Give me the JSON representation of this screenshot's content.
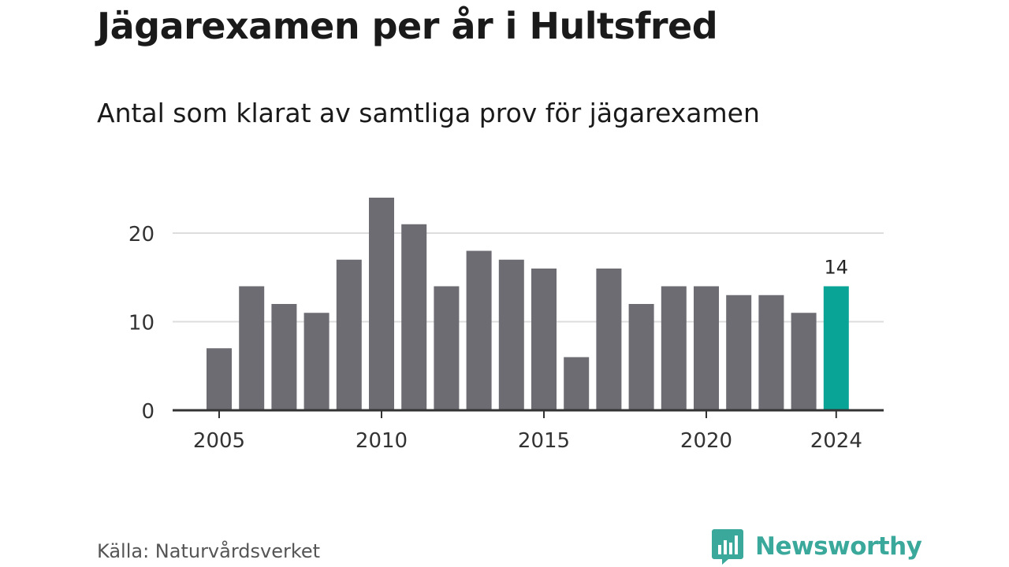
{
  "chart_data": {
    "type": "bar",
    "title": "Jägarexamen per år i Hultsfred",
    "subtitle": "Antal som klarat av samtliga prov för jägarexamen",
    "source": "Källa: Naturvårdsverket",
    "brand": "Newsworthy",
    "x": [
      2005,
      2006,
      2007,
      2008,
      2009,
      2010,
      2011,
      2012,
      2013,
      2014,
      2015,
      2016,
      2017,
      2018,
      2019,
      2020,
      2021,
      2022,
      2023,
      2024
    ],
    "values": [
      7,
      14,
      12,
      11,
      17,
      24,
      21,
      14,
      18,
      17,
      16,
      6,
      16,
      12,
      14,
      14,
      13,
      13,
      11,
      14
    ],
    "xticks": [
      "2005",
      "2010",
      "2015",
      "2020",
      "2024"
    ],
    "yticks": [
      "0",
      "10",
      "20"
    ],
    "ylim": [
      0,
      24
    ],
    "highlight": {
      "year": 2024,
      "label": "14"
    },
    "grid": true,
    "colors": {
      "bar": "#6d6c73",
      "highlight": "#0aa496",
      "grid": "#dddddd",
      "axis": "#333333",
      "brand": "#3aa89b"
    }
  }
}
